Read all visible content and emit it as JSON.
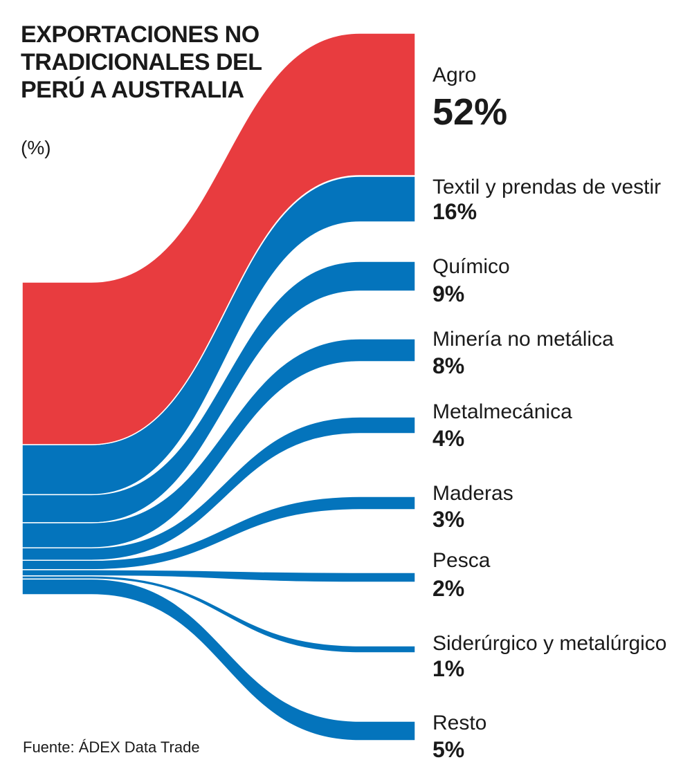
{
  "header": {
    "title": "EXPORTACIONES NO TRADICIONALES DEL PERÚ A AUSTRALIA",
    "subtitle": "(%)"
  },
  "footer": {
    "source": "Fuente: ÁDEX Data Trade"
  },
  "colors": {
    "highlight": "#e83c3f",
    "primary": "#0474bc",
    "text": "#1a1a1a"
  },
  "chart_data": {
    "type": "sankey",
    "title": "EXPORTACIONES NO TRADICIONALES DEL PERÚ A AUSTRALIA",
    "unit": "(%)",
    "categories": [
      "Agro",
      "Textil y prendas de vestir",
      "Químico",
      "Minería no metálica",
      "Metalmecánica",
      "Maderas",
      "Pesca",
      "Siderúrgico y metalúrgico",
      "Resto"
    ],
    "values": [
      52,
      16,
      9,
      8,
      4,
      3,
      2,
      1,
      5
    ],
    "value_labels": [
      "52%",
      "16%",
      "9%",
      "8%",
      "4%",
      "3%",
      "2%",
      "1%",
      "5%"
    ],
    "highlight_index": 0
  }
}
